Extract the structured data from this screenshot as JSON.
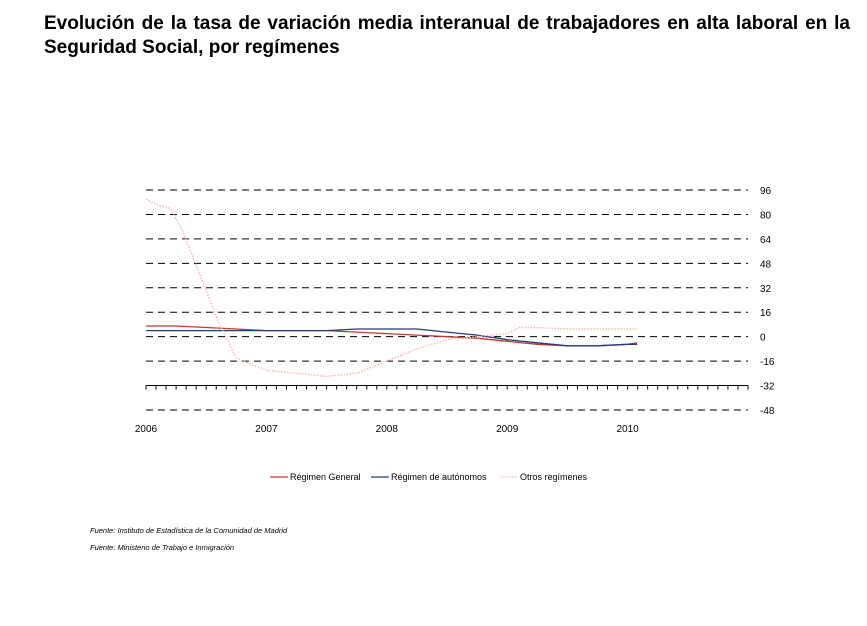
{
  "chart_data": {
    "type": "line",
    "title": "Evolución de la tasa de variación media interanual de trabajadores en alta laboral en la Seguridad Social, por regímenes",
    "xlabel": "",
    "ylabel": "",
    "xlim": [
      2006,
      2011
    ],
    "ylim": [
      -48,
      96
    ],
    "x_ticks": [
      "2006",
      "2007",
      "2008",
      "2009",
      "2010"
    ],
    "y_ticks": [
      "96",
      "80",
      "64",
      "48",
      "32",
      "16",
      "0",
      "-16",
      "-32",
      "-48"
    ],
    "y_axis_side": "right",
    "grid": "horizontal dashed",
    "legend_position": "bottom",
    "series": [
      {
        "name": "Régimen General",
        "color": "#c0392b",
        "style": "solid",
        "x": [
          2006.0,
          2006.25,
          2006.5,
          2006.75,
          2007.0,
          2007.25,
          2007.5,
          2007.75,
          2008.0,
          2008.25,
          2008.5,
          2008.75,
          2009.0,
          2009.25,
          2009.5,
          2009.75,
          2010.0,
          2010.08
        ],
        "y": [
          7,
          7,
          6,
          5,
          4,
          4,
          4,
          3,
          2,
          1,
          0,
          -1,
          -3,
          -5,
          -6,
          -6,
          -5,
          -4
        ]
      },
      {
        "name": "Régimen de autónomos",
        "color": "#1f3f7a",
        "style": "solid",
        "x": [
          2006.0,
          2006.25,
          2006.5,
          2006.75,
          2007.0,
          2007.25,
          2007.5,
          2007.75,
          2008.0,
          2008.25,
          2008.5,
          2008.75,
          2009.0,
          2009.25,
          2009.5,
          2009.75,
          2010.0,
          2010.08
        ],
        "y": [
          4,
          4,
          4,
          4,
          4,
          4,
          4,
          5,
          5,
          5,
          3,
          1,
          -2,
          -4,
          -6,
          -6,
          -5,
          -5
        ]
      },
      {
        "name": "Otros regímenes",
        "color": "#f2b8b0",
        "style": "dotted",
        "x": [
          2006.0,
          2006.1,
          2006.2,
          2006.3,
          2006.45,
          2006.6,
          2006.75,
          2007.0,
          2007.25,
          2007.5,
          2007.75,
          2008.0,
          2008.25,
          2008.5,
          2008.75,
          2009.0,
          2009.1,
          2009.25,
          2009.5,
          2009.75,
          2010.0,
          2010.08
        ],
        "y": [
          90,
          86,
          84,
          70,
          40,
          10,
          -14,
          -22,
          -24,
          -26,
          -24,
          -16,
          -8,
          -2,
          0,
          2,
          6,
          6,
          5,
          5,
          5,
          5
        ]
      }
    ]
  },
  "sources": [
    "Fuente: Instituto de Estadística de la Comunidad de Madrid",
    "Fuente: Ministerio de Trabajo e Inmigración"
  ]
}
